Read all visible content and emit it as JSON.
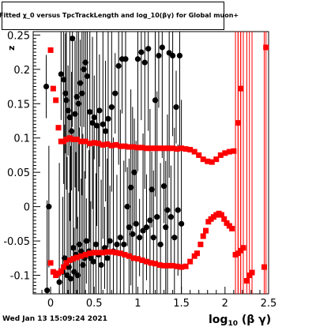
{
  "title": "Fitted  χ_0  versus TpcTrackLength and log_10(βγ) for Global muon+",
  "timestamp": "Wed Jan 13 15:09:24 2021",
  "colors": {
    "black_series": "#000000",
    "red_series": "#ff0000",
    "frame": "#000000"
  },
  "chart_data": {
    "type": "scatter",
    "title": "Fitted  χ_0  versus TpcTrackLength and log_10(βγ) for Global muon+",
    "xlabel": "log_10(β γ)",
    "ylabel": "z",
    "xlim": [
      -0.2,
      2.5
    ],
    "ylim": [
      -0.127,
      0.255
    ],
    "x_ticks": [
      "0",
      "0.5",
      "1",
      "1.5",
      "2",
      "2.5"
    ],
    "y_ticks": [
      "-0.1",
      "-0.05",
      "0",
      "0.05",
      "0.1",
      "0.15",
      "0.2",
      "0.25"
    ],
    "legend": "none",
    "series": [
      {
        "color": "#000000",
        "marker": "circle",
        "points": [
          [
            -0.05,
            0.175
          ],
          [
            -0.02,
            0.0
          ],
          [
            -0.04,
            -0.122
          ],
          [
            0.1,
            -0.11
          ],
          [
            0.12,
            0.193
          ],
          [
            0.14,
            -0.095
          ],
          [
            0.15,
            0.185
          ],
          [
            0.16,
            -0.075
          ],
          [
            0.17,
            0.165
          ],
          [
            0.18,
            0.155
          ],
          [
            0.19,
            -0.1
          ],
          [
            0.2,
            0.14
          ],
          [
            0.21,
            -0.088
          ],
          [
            0.22,
            0.13
          ],
          [
            0.23,
            -0.105
          ],
          [
            0.24,
            0.11
          ],
          [
            0.25,
            0.245
          ],
          [
            0.26,
            -0.06
          ],
          [
            0.27,
            -0.095
          ],
          [
            0.28,
            0.135
          ],
          [
            0.29,
            -0.07
          ],
          [
            0.3,
            0.16
          ],
          [
            0.31,
            -0.1
          ],
          [
            0.32,
            0.15
          ],
          [
            0.33,
            -0.055
          ],
          [
            0.34,
            0.18
          ],
          [
            0.35,
            -0.065
          ],
          [
            0.36,
            0.165
          ],
          [
            0.37,
            -0.085
          ],
          [
            0.38,
            0.2
          ],
          [
            0.39,
            -0.075
          ],
          [
            0.4,
            0.21
          ],
          [
            0.41,
            -0.05
          ],
          [
            0.42,
            0.19
          ],
          [
            0.44,
            -0.065
          ],
          [
            0.45,
            0.138
          ],
          [
            0.46,
            -0.075
          ],
          [
            0.48,
            0.122
          ],
          [
            0.49,
            -0.08
          ],
          [
            0.5,
            0.13
          ],
          [
            0.52,
            -0.055
          ],
          [
            0.53,
            0.118
          ],
          [
            0.55,
            -0.07
          ],
          [
            0.56,
            0.14
          ],
          [
            0.58,
            -0.085
          ],
          [
            0.6,
            0.12
          ],
          [
            0.62,
            -0.06
          ],
          [
            0.63,
            0.11
          ],
          [
            0.65,
            -0.075
          ],
          [
            0.66,
            0.128
          ],
          [
            0.68,
            -0.05
          ],
          [
            0.7,
            0.145
          ],
          [
            0.72,
            -0.065
          ],
          [
            0.74,
            0.165
          ],
          [
            0.76,
            -0.055
          ],
          [
            0.78,
            0.205
          ],
          [
            0.8,
            -0.045
          ],
          [
            0.82,
            0.215
          ],
          [
            0.84,
            -0.055
          ],
          [
            0.86,
            0.215
          ],
          [
            0.88,
            0.0
          ],
          [
            0.9,
            -0.03
          ],
          [
            0.92,
            0.028
          ],
          [
            0.94,
            -0.04
          ],
          [
            0.96,
            0.05
          ],
          [
            0.98,
            -0.025
          ],
          [
            1.0,
            0.215
          ],
          [
            1.02,
            -0.045
          ],
          [
            1.04,
            0.225
          ],
          [
            1.06,
            -0.035
          ],
          [
            1.08,
            0.21
          ],
          [
            1.1,
            -0.03
          ],
          [
            1.12,
            0.23
          ],
          [
            1.14,
            -0.02
          ],
          [
            1.16,
            0.025
          ],
          [
            1.18,
            -0.045
          ],
          [
            1.2,
            0.155
          ],
          [
            1.22,
            -0.015
          ],
          [
            1.24,
            0.22
          ],
          [
            1.26,
            -0.055
          ],
          [
            1.28,
            0.232
          ],
          [
            1.3,
            0.03
          ],
          [
            1.32,
            -0.03
          ],
          [
            1.34,
            -0.005
          ],
          [
            1.36,
            0.224
          ],
          [
            1.38,
            -0.015
          ],
          [
            1.4,
            0.22
          ],
          [
            1.42,
            -0.045
          ],
          [
            1.44,
            0.145
          ],
          [
            1.46,
            -0.005
          ],
          [
            1.48,
            0.22
          ],
          [
            1.5,
            -0.025
          ]
        ]
      },
      {
        "color": "#ff0000",
        "marker": "square",
        "points": [
          [
            0.0,
            0.228
          ],
          [
            0.03,
            0.172
          ],
          [
            0.06,
            0.155
          ],
          [
            0.09,
            0.115
          ],
          [
            0.12,
            0.095
          ],
          [
            0.15,
            0.095
          ],
          [
            0.18,
            0.098
          ],
          [
            0.22,
            0.1
          ],
          [
            0.26,
            0.098
          ],
          [
            0.3,
            0.098
          ],
          [
            0.35,
            0.095
          ],
          [
            0.4,
            0.095
          ],
          [
            0.45,
            0.092
          ],
          [
            0.5,
            0.093
          ],
          [
            0.55,
            0.092
          ],
          [
            0.6,
            0.09
          ],
          [
            0.65,
            0.091
          ],
          [
            0.7,
            0.089
          ],
          [
            0.75,
            0.09
          ],
          [
            0.8,
            0.088
          ],
          [
            0.85,
            0.088
          ],
          [
            0.9,
            0.087
          ],
          [
            0.95,
            0.087
          ],
          [
            1.0,
            0.086
          ],
          [
            1.05,
            0.086
          ],
          [
            1.1,
            0.085
          ],
          [
            1.15,
            0.085
          ],
          [
            1.2,
            0.085
          ],
          [
            1.25,
            0.085
          ],
          [
            1.3,
            0.085
          ],
          [
            1.35,
            0.085
          ],
          [
            1.4,
            0.085
          ],
          [
            1.45,
            0.084
          ],
          [
            1.5,
            0.085
          ],
          [
            1.55,
            0.084
          ],
          [
            1.6,
            0.083
          ],
          [
            1.65,
            0.08
          ],
          [
            1.7,
            0.075
          ],
          [
            1.75,
            0.069
          ],
          [
            1.8,
            0.066
          ],
          [
            1.85,
            0.065
          ],
          [
            1.9,
            0.069
          ],
          [
            1.95,
            0.075
          ],
          [
            2.0,
            0.078
          ],
          [
            2.05,
            0.08
          ],
          [
            2.1,
            0.081
          ],
          [
            2.15,
            0.122
          ],
          [
            2.18,
            0.172
          ],
          [
            2.47,
            0.232
          ],
          [
            0.0,
            -0.082
          ],
          [
            0.03,
            -0.095
          ],
          [
            0.06,
            -0.1
          ],
          [
            0.09,
            -0.097
          ],
          [
            0.12,
            -0.094
          ],
          [
            0.15,
            -0.088
          ],
          [
            0.18,
            -0.082
          ],
          [
            0.22,
            -0.078
          ],
          [
            0.26,
            -0.076
          ],
          [
            0.3,
            -0.074
          ],
          [
            0.35,
            -0.072
          ],
          [
            0.4,
            -0.07
          ],
          [
            0.45,
            -0.068
          ],
          [
            0.5,
            -0.067
          ],
          [
            0.55,
            -0.067
          ],
          [
            0.6,
            -0.067
          ],
          [
            0.65,
            -0.066
          ],
          [
            0.7,
            -0.066
          ],
          [
            0.75,
            -0.067
          ],
          [
            0.8,
            -0.068
          ],
          [
            0.85,
            -0.07
          ],
          [
            0.9,
            -0.072
          ],
          [
            0.95,
            -0.075
          ],
          [
            1.0,
            -0.076
          ],
          [
            1.05,
            -0.078
          ],
          [
            1.1,
            -0.08
          ],
          [
            1.15,
            -0.082
          ],
          [
            1.2,
            -0.083
          ],
          [
            1.25,
            -0.085
          ],
          [
            1.3,
            -0.086
          ],
          [
            1.35,
            -0.086
          ],
          [
            1.4,
            -0.086
          ],
          [
            1.45,
            -0.087
          ],
          [
            1.5,
            -0.088
          ],
          [
            1.55,
            -0.087
          ],
          [
            1.6,
            -0.08
          ],
          [
            1.65,
            -0.072
          ],
          [
            1.68,
            -0.068
          ],
          [
            1.72,
            -0.055
          ],
          [
            1.75,
            -0.043
          ],
          [
            1.78,
            -0.035
          ],
          [
            1.81,
            -0.022
          ],
          [
            1.84,
            -0.018
          ],
          [
            1.87,
            -0.015
          ],
          [
            1.9,
            -0.012
          ],
          [
            1.93,
            -0.01
          ],
          [
            1.96,
            -0.012
          ],
          [
            1.99,
            -0.018
          ],
          [
            2.02,
            -0.024
          ],
          [
            2.05,
            -0.028
          ],
          [
            2.08,
            -0.032
          ],
          [
            2.12,
            -0.07
          ],
          [
            2.15,
            -0.068
          ],
          [
            2.18,
            -0.064
          ],
          [
            2.21,
            -0.06
          ],
          [
            2.25,
            -0.108
          ],
          [
            2.28,
            -0.1
          ],
          [
            2.31,
            -0.096
          ],
          [
            2.45,
            -0.088
          ]
        ]
      }
    ]
  }
}
